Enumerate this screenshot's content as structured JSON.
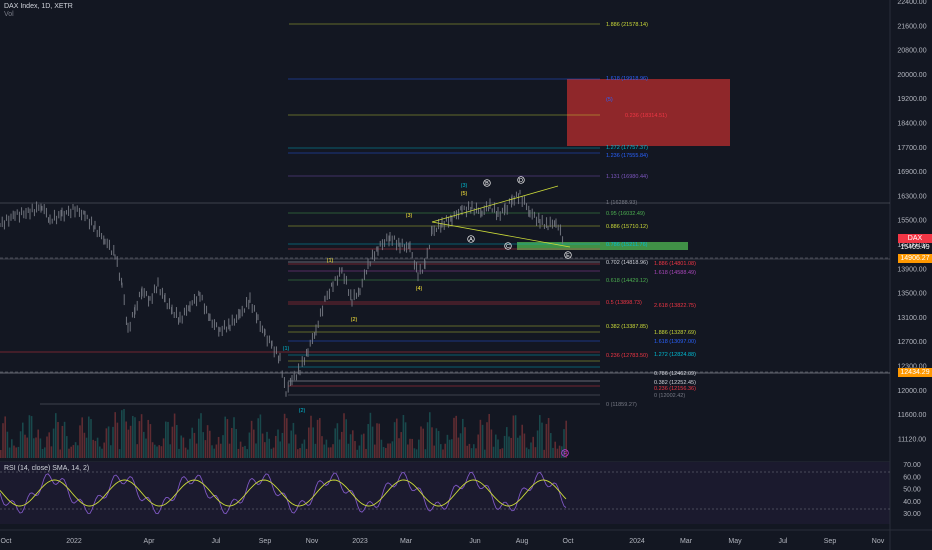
{
  "header": {
    "title": "DAX Index, 1D, XETR",
    "vol": "Vol"
  },
  "rsi": {
    "label": "RSI (14, close) SMA, 14, 2)"
  },
  "price_axis": [
    "22400.00",
    "21600.00",
    "20800.00",
    "20000.00",
    "19200.00",
    "18400.00",
    "17700.00",
    "16900.00",
    "16300.00",
    "15500.00",
    "14700.00",
    "13900.00",
    "13500.00",
    "13100.00",
    "12700.00",
    "12300.00",
    "12000.00",
    "11600.00",
    "11120.00"
  ],
  "rsi_axis": [
    "70.00",
    "60.00",
    "50.00",
    "40.00",
    "30.00"
  ],
  "time_axis": [
    "Oct",
    "2022",
    "Apr",
    "Jul",
    "Sep",
    "Nov",
    "2023",
    "Mar",
    "Jun",
    "Aug",
    "Oct",
    "2024",
    "Mar",
    "May",
    "Jul",
    "Sep",
    "Nov"
  ],
  "tags": {
    "dax": {
      "name": "DAX",
      "value": "15405.49",
      "color": "#f23645"
    },
    "level1": {
      "value": "14906.27",
      "color": "#ff9800"
    },
    "level2": {
      "value": "12434.29",
      "color": "#ff9800"
    }
  },
  "fib_labels": [
    {
      "text": "1.886 (21578.14)",
      "color": "#cddc39"
    },
    {
      "text": "1.618 (19918.96)",
      "color": "#2962ff"
    },
    {
      "text": "(5)",
      "color": "#2962ff"
    },
    {
      "text": "0.236 (18314.51)",
      "color": "#f23645"
    },
    {
      "text": "1.272 (17757.37)",
      "color": "#00bcd4"
    },
    {
      "text": "1.236 (17555.84)",
      "color": "#2962ff"
    },
    {
      "text": "1.131 (16980.44)",
      "color": "#7e57c2"
    },
    {
      "text": "1 (16288.93)",
      "color": "#787b86"
    },
    {
      "text": "0.95 (16032.49)",
      "color": "#4caf50"
    },
    {
      "text": "0.886 (15710.12)",
      "color": "#cddc39"
    },
    {
      "text": "0.786 (15211.76)",
      "color": "#00bcd4"
    },
    {
      "text": "0.702 (14818.96)",
      "color": "#d1d4dc"
    },
    {
      "text": "1.886 (14801.08)",
      "color": "#f23645"
    },
    {
      "text": "1.618 (14588.49)",
      "color": "#ab47bc"
    },
    {
      "text": "0.618 (14429.12)",
      "color": "#4caf50"
    },
    {
      "text": "0.5 (13898.73)",
      "color": "#f23645"
    },
    {
      "text": "2.618 (13822.75)",
      "color": "#f23645"
    },
    {
      "text": "0.382 (13387.85)",
      "color": "#cddc39"
    },
    {
      "text": "1.886 (13287.69)",
      "color": "#cddc39"
    },
    {
      "text": "1.618 (13097.00)",
      "color": "#2962ff"
    },
    {
      "text": "0.236 (12783.50)",
      "color": "#f23645"
    },
    {
      "text": "1.272 (12824.88)",
      "color": "#00bcd4"
    },
    {
      "text": "0.786 (12462.09)",
      "color": "#d1d4dc"
    },
    {
      "text": "0.382 (12252.45)",
      "color": "#d1d4dc"
    },
    {
      "text": "0.236 (12156.36)",
      "color": "#f23645"
    },
    {
      "text": "0 (12002.42)",
      "color": "#787b86"
    },
    {
      "text": "0 (11859.27)",
      "color": "#787b86"
    }
  ],
  "wave_labels": [
    {
      "text": "(3)",
      "color": "#00bcd4"
    },
    {
      "text": "(5)",
      "color": "#ffeb3b"
    },
    {
      "text": "B",
      "color": "#ffffff"
    },
    {
      "text": "D",
      "color": "#ffffff"
    },
    {
      "text": "(3)",
      "color": "#ffeb3b"
    },
    {
      "text": "A",
      "color": "#ffffff"
    },
    {
      "text": "C",
      "color": "#ffffff"
    },
    {
      "text": "E",
      "color": "#ffffff"
    },
    {
      "text": "(1)",
      "color": "#ffeb3b"
    },
    {
      "text": "(4)",
      "color": "#ffeb3b"
    },
    {
      "text": "(2)",
      "color": "#ffeb3b"
    },
    {
      "text": "(1)",
      "color": "#00bcd4"
    },
    {
      "text": "(2)",
      "color": "#00bcd4"
    },
    {
      "text": "F",
      "color": "#e040fb"
    }
  ]
}
